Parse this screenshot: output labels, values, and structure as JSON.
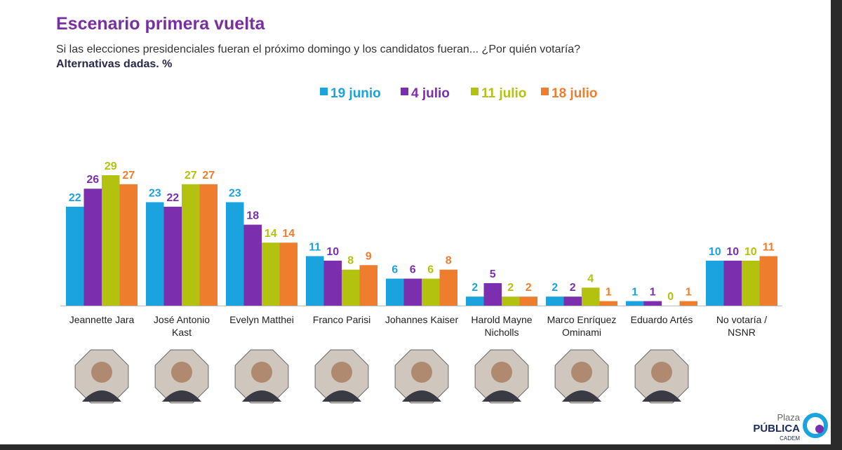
{
  "chart_data": {
    "type": "bar",
    "title": "Escenario primera vuelta",
    "subtitle": "Si las elecciones presidenciales fueran el próximo domingo y los candidatos fueran... ¿Por quién votaría?",
    "note": "Alternativas dadas. %",
    "categories": [
      "Jeannette Jara",
      "José Antonio Kast",
      "Evelyn Matthei",
      "Franco Parisi",
      "Johannes Kaiser",
      "Harold Mayne Nicholls",
      "Marco Enríquez Ominami",
      "Eduardo Artés",
      "No votaría / NSNR"
    ],
    "series": [
      {
        "name": "19 junio",
        "color": "#1aa3de",
        "values": [
          22,
          23,
          23,
          11,
          6,
          2,
          2,
          1,
          10
        ]
      },
      {
        "name": "4 julio",
        "color": "#7b2fae",
        "values": [
          26,
          22,
          18,
          10,
          6,
          5,
          2,
          1,
          10
        ]
      },
      {
        "name": "11 julio",
        "color": "#b3c10f",
        "values": [
          29,
          27,
          14,
          8,
          6,
          2,
          4,
          0,
          10
        ]
      },
      {
        "name": "18 julio",
        "color": "#ee7d2e",
        "values": [
          27,
          27,
          14,
          9,
          8,
          2,
          1,
          1,
          11
        ]
      }
    ]
  },
  "logo": {
    "line1": "Plaza",
    "line2": "PÚBLICA",
    "line3": "CADEM"
  }
}
